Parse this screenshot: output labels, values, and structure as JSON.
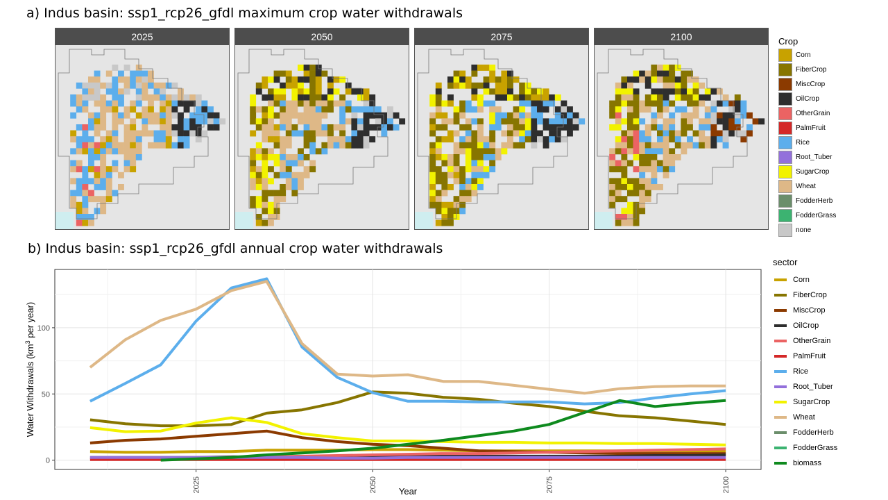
{
  "titles": {
    "map": "a) Indus basin: ssp1_rcp26_gfdl maximum crop water withdrawals",
    "line": "b) Indus basin: ssp1_rcp26_gfdl annual crop water withdrawals"
  },
  "panels": [
    "2025",
    "2050",
    "2075",
    "2100"
  ],
  "crop_legend": {
    "title": "Crop",
    "items": [
      {
        "label": "Corn",
        "color": "#C8A200"
      },
      {
        "label": "FiberCrop",
        "color": "#877500"
      },
      {
        "label": "MiscCrop",
        "color": "#8B3A00"
      },
      {
        "label": "OilCrop",
        "color": "#2E2E2E"
      },
      {
        "label": "OtherGrain",
        "color": "#EB6363"
      },
      {
        "label": "PalmFruit",
        "color": "#D42828"
      },
      {
        "label": "Rice",
        "color": "#5CAEEC"
      },
      {
        "label": "Root_Tuber",
        "color": "#9370DB"
      },
      {
        "label": "SugarCrop",
        "color": "#F2F200"
      },
      {
        "label": "Wheat",
        "color": "#DEB887"
      },
      {
        "label": "FodderHerb",
        "color": "#6B8E6B"
      },
      {
        "label": "FodderGrass",
        "color": "#3CB371"
      },
      {
        "label": "none",
        "color": "#C8C8C8"
      }
    ]
  },
  "chart_data": {
    "type": "line",
    "title": "b) Indus basin: ssp1_rcp26_gfdl annual crop water withdrawals",
    "xlabel": "Year",
    "ylabel": "Water Withdrawals (km³ per year)",
    "ylabel_main": "Water Withdrawals (km",
    "ylabel_sup": "3",
    "ylabel_tail": " per year)",
    "xlim": [
      2005,
      2105
    ],
    "ylim": [
      -7,
      144
    ],
    "xticks": [
      2025,
      2050,
      2075,
      2100
    ],
    "yticks": [
      0,
      50,
      100
    ],
    "grid": true,
    "legend_title": "sector",
    "legend_position": "right",
    "x": [
      2010,
      2015,
      2020,
      2025,
      2030,
      2035,
      2040,
      2045,
      2050,
      2055,
      2060,
      2065,
      2070,
      2075,
      2080,
      2085,
      2090,
      2095,
      2100
    ],
    "series": [
      {
        "name": "Corn",
        "color": "#C8A200",
        "values": [
          6.5,
          6,
          6,
          6.5,
          6.5,
          7.5,
          7.5,
          7.5,
          8,
          8,
          7.5,
          7,
          7,
          7,
          7,
          7,
          7,
          7,
          7
        ]
      },
      {
        "name": "FiberCrop",
        "color": "#877500",
        "values": [
          30.5,
          27.5,
          26,
          26,
          27,
          35.5,
          38,
          43.5,
          51.5,
          50.5,
          47.5,
          46,
          43,
          40.5,
          37,
          33.5,
          32,
          29.5,
          27
        ]
      },
      {
        "name": "MiscCrop",
        "color": "#8B3A00",
        "values": [
          13,
          15,
          16,
          18,
          20,
          22,
          17,
          14,
          12,
          11,
          9,
          7,
          6.5,
          6,
          5.5,
          5,
          5,
          5,
          5
        ]
      },
      {
        "name": "OilCrop",
        "color": "#2E2E2E",
        "values": [
          2,
          2,
          2,
          2,
          2.5,
          2.5,
          2.5,
          2.5,
          2.5,
          3,
          3,
          3,
          3,
          3,
          3,
          3,
          3.5,
          3.5,
          4
        ]
      },
      {
        "name": "OtherGrain",
        "color": "#EB6363",
        "values": [
          1,
          1,
          1,
          1.5,
          2,
          2.5,
          3,
          3.5,
          4,
          4.5,
          5,
          5,
          5.5,
          6,
          6.5,
          7,
          7.5,
          8,
          8.5
        ]
      },
      {
        "name": "PalmFruit",
        "color": "#D42828",
        "values": [
          0.5,
          0.5,
          0.5,
          0.5,
          0.5,
          0.5,
          0.5,
          0.5,
          0.5,
          0.5,
          0.5,
          0.5,
          0.5,
          0.5,
          0.5,
          0.5,
          0.5,
          0.5,
          0.5
        ]
      },
      {
        "name": "Rice",
        "color": "#5CAEEC",
        "values": [
          44.5,
          58,
          72,
          105,
          130,
          137,
          85.5,
          62.5,
          51,
          44.5,
          44.5,
          44,
          44,
          44,
          42.5,
          43.5,
          47,
          50,
          52.5
        ]
      },
      {
        "name": "Root_Tuber",
        "color": "#9370DB",
        "values": [
          2,
          2,
          2,
          2,
          2,
          2,
          2,
          1.5,
          1.5,
          2,
          2,
          2,
          2,
          2,
          2,
          2,
          2,
          2,
          2
        ]
      },
      {
        "name": "SugarCrop",
        "color": "#F2F200",
        "values": [
          24.5,
          21.5,
          22,
          28,
          32,
          28.5,
          20,
          17,
          14.5,
          14.5,
          14,
          13.5,
          13.5,
          13,
          13,
          12.5,
          12.5,
          12,
          11.5
        ]
      },
      {
        "name": "Wheat",
        "color": "#DEB887",
        "values": [
          70,
          91,
          105.5,
          114,
          128,
          135,
          88,
          65,
          63.5,
          64.5,
          59.5,
          59.5,
          56.5,
          53.5,
          50.5,
          54,
          55.5,
          56,
          56
        ]
      },
      {
        "name": "FodderHerb",
        "color": "#6B8E6B",
        "values": [
          null,
          null,
          null,
          null,
          null,
          null,
          null,
          null,
          null,
          null,
          null,
          null,
          null,
          null,
          null,
          null,
          null,
          null,
          null
        ]
      },
      {
        "name": "FodderGrass",
        "color": "#3CB371",
        "values": [
          null,
          null,
          null,
          null,
          null,
          null,
          null,
          null,
          null,
          null,
          null,
          null,
          null,
          null,
          null,
          null,
          null,
          null,
          null
        ]
      },
      {
        "name": "biomass",
        "color": "#0E8A1E",
        "values": [
          null,
          null,
          0,
          1,
          2,
          4,
          5.5,
          7,
          9,
          12,
          15,
          18.5,
          22,
          27,
          36,
          45,
          40.5,
          43,
          45
        ]
      }
    ]
  }
}
